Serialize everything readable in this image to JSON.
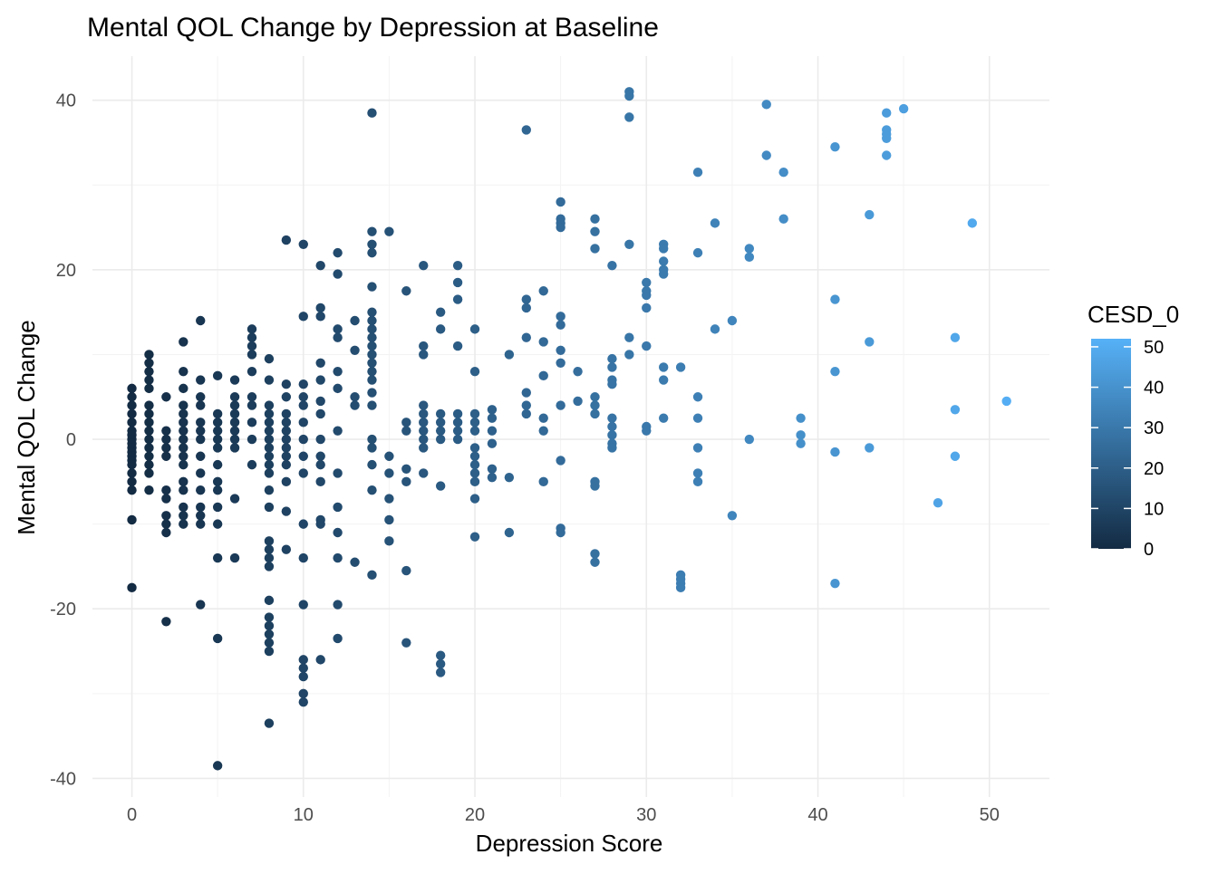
{
  "chart_data": {
    "type": "scatter",
    "title": "Mental QOL Change by Depression at Baseline",
    "xlabel": "Depression Score",
    "ylabel": "Mental QOL Change",
    "xlim": [
      -2.3,
      53.5
    ],
    "ylim": [
      -42.2,
      45.2
    ],
    "x_ticks": [
      0,
      10,
      20,
      30,
      40,
      50
    ],
    "y_ticks": [
      -40,
      -20,
      0,
      20,
      40
    ],
    "x_tick_labels": [
      "0",
      "10",
      "20",
      "30",
      "40",
      "50"
    ],
    "y_tick_labels": [
      "-40",
      "-20",
      "0",
      "20",
      "40"
    ],
    "grid": true,
    "point_color_low": "#132b43",
    "point_color_high": "#56b1f7",
    "legend": {
      "title": "CESD_0",
      "placement": "right",
      "min": 0,
      "max": 52,
      "ticks": [
        0,
        10,
        20,
        30,
        40,
        50
      ],
      "tick_labels": [
        "0",
        "10",
        "20",
        "30",
        "40",
        "50"
      ]
    },
    "points": [
      [
        0,
        6
      ],
      [
        0,
        5
      ],
      [
        0,
        4
      ],
      [
        0,
        3
      ],
      [
        0,
        2
      ],
      [
        0,
        1
      ],
      [
        0,
        0.5
      ],
      [
        0,
        0
      ],
      [
        0,
        -0.5
      ],
      [
        0,
        -1
      ],
      [
        0,
        -1.5
      ],
      [
        0,
        -2
      ],
      [
        0,
        -2.5
      ],
      [
        0,
        -3
      ],
      [
        0,
        -4
      ],
      [
        0,
        -5
      ],
      [
        0,
        -6
      ],
      [
        0,
        -9.5
      ],
      [
        0,
        -17.5
      ],
      [
        1,
        10
      ],
      [
        1,
        9
      ],
      [
        1,
        8
      ],
      [
        1,
        7
      ],
      [
        1,
        6
      ],
      [
        1,
        4
      ],
      [
        1,
        3
      ],
      [
        1,
        2
      ],
      [
        1,
        1
      ],
      [
        1,
        0
      ],
      [
        1,
        -1
      ],
      [
        1,
        -2
      ],
      [
        1,
        -3
      ],
      [
        1,
        -4
      ],
      [
        1,
        -6
      ],
      [
        2,
        5
      ],
      [
        2,
        1
      ],
      [
        2,
        0
      ],
      [
        2,
        -1
      ],
      [
        2,
        -2
      ],
      [
        2,
        -6
      ],
      [
        2,
        -7
      ],
      [
        2,
        -9
      ],
      [
        2,
        -10
      ],
      [
        2,
        -11
      ],
      [
        2,
        -21.5
      ],
      [
        3,
        11.5
      ],
      [
        3,
        8
      ],
      [
        3,
        6
      ],
      [
        3,
        4
      ],
      [
        3,
        3
      ],
      [
        3,
        2
      ],
      [
        3,
        1
      ],
      [
        3,
        0
      ],
      [
        3,
        -1
      ],
      [
        3,
        -2
      ],
      [
        3,
        -3
      ],
      [
        3,
        -5
      ],
      [
        3,
        -6
      ],
      [
        3,
        -8
      ],
      [
        3,
        -9
      ],
      [
        3,
        -10
      ],
      [
        4,
        14
      ],
      [
        4,
        7
      ],
      [
        4,
        5
      ],
      [
        4,
        4
      ],
      [
        4,
        2
      ],
      [
        4,
        1
      ],
      [
        4,
        0
      ],
      [
        4,
        -2
      ],
      [
        4,
        -4
      ],
      [
        4,
        -6
      ],
      [
        4,
        -8
      ],
      [
        4,
        -9
      ],
      [
        4,
        -10
      ],
      [
        4,
        -19.5
      ],
      [
        5,
        7.5
      ],
      [
        5,
        3
      ],
      [
        5,
        2
      ],
      [
        5,
        1
      ],
      [
        5,
        0
      ],
      [
        5,
        -1
      ],
      [
        5,
        -3
      ],
      [
        5,
        -5
      ],
      [
        5,
        -6
      ],
      [
        5,
        -8
      ],
      [
        5,
        -10
      ],
      [
        5,
        -14
      ],
      [
        5,
        -23.5
      ],
      [
        5,
        -38.5
      ],
      [
        6,
        7
      ],
      [
        6,
        5
      ],
      [
        6,
        4
      ],
      [
        6,
        3
      ],
      [
        6,
        2
      ],
      [
        6,
        1
      ],
      [
        6,
        0
      ],
      [
        6,
        -1
      ],
      [
        6,
        -7
      ],
      [
        6,
        -14
      ],
      [
        7,
        13
      ],
      [
        7,
        12
      ],
      [
        7,
        11
      ],
      [
        7,
        10
      ],
      [
        7,
        8
      ],
      [
        7,
        5
      ],
      [
        7,
        4
      ],
      [
        7,
        2
      ],
      [
        7,
        0
      ],
      [
        7,
        -3
      ],
      [
        8,
        9.5
      ],
      [
        8,
        7
      ],
      [
        8,
        4
      ],
      [
        8,
        3
      ],
      [
        8,
        2
      ],
      [
        8,
        1
      ],
      [
        8,
        0
      ],
      [
        8,
        -1
      ],
      [
        8,
        -2
      ],
      [
        8,
        -3
      ],
      [
        8,
        -4
      ],
      [
        8,
        -6
      ],
      [
        8,
        -8
      ],
      [
        8,
        -12
      ],
      [
        8,
        -13
      ],
      [
        8,
        -14
      ],
      [
        8,
        -15
      ],
      [
        8,
        -19
      ],
      [
        8,
        -21
      ],
      [
        8,
        -22
      ],
      [
        8,
        -23
      ],
      [
        8,
        -24
      ],
      [
        8,
        -25
      ],
      [
        8,
        -33.5
      ],
      [
        9,
        23.5
      ],
      [
        9,
        6.5
      ],
      [
        9,
        5
      ],
      [
        9,
        3
      ],
      [
        9,
        2
      ],
      [
        9,
        1
      ],
      [
        9,
        0
      ],
      [
        9,
        -1
      ],
      [
        9,
        -2
      ],
      [
        9,
        -3
      ],
      [
        9,
        -5
      ],
      [
        9,
        -8.5
      ],
      [
        9,
        -13
      ],
      [
        10,
        23
      ],
      [
        10,
        14.5
      ],
      [
        10,
        6.5
      ],
      [
        10,
        5
      ],
      [
        10,
        4
      ],
      [
        10,
        2
      ],
      [
        10,
        0
      ],
      [
        10,
        -2
      ],
      [
        10,
        -4
      ],
      [
        10,
        -10
      ],
      [
        10,
        -14
      ],
      [
        10,
        -19.5
      ],
      [
        10,
        -26
      ],
      [
        10,
        -27
      ],
      [
        10,
        -28
      ],
      [
        10,
        -30
      ],
      [
        10,
        -31
      ],
      [
        11,
        20.5
      ],
      [
        11,
        15.5
      ],
      [
        11,
        14.5
      ],
      [
        11,
        9
      ],
      [
        11,
        7
      ],
      [
        11,
        4.5
      ],
      [
        11,
        3
      ],
      [
        11,
        0
      ],
      [
        11,
        -2
      ],
      [
        11,
        -3
      ],
      [
        11,
        -5
      ],
      [
        11,
        -9.5
      ],
      [
        11,
        -10
      ],
      [
        11,
        -26
      ],
      [
        12,
        22
      ],
      [
        12,
        19.5
      ],
      [
        12,
        13
      ],
      [
        12,
        12
      ],
      [
        12,
        8
      ],
      [
        12,
        6
      ],
      [
        12,
        1
      ],
      [
        12,
        -4
      ],
      [
        12,
        -8
      ],
      [
        12,
        -11
      ],
      [
        12,
        -14
      ],
      [
        12,
        -19.5
      ],
      [
        12,
        -23.5
      ],
      [
        13,
        14
      ],
      [
        13,
        10.5
      ],
      [
        13,
        5
      ],
      [
        13,
        4
      ],
      [
        13,
        -14.5
      ],
      [
        14,
        24.5
      ],
      [
        14,
        23
      ],
      [
        14,
        22
      ],
      [
        14,
        18
      ],
      [
        14,
        15
      ],
      [
        14,
        14
      ],
      [
        14,
        13
      ],
      [
        14,
        12
      ],
      [
        14,
        11
      ],
      [
        14,
        10
      ],
      [
        14,
        9
      ],
      [
        14,
        8
      ],
      [
        14,
        7
      ],
      [
        14,
        5.5
      ],
      [
        14,
        4
      ],
      [
        14,
        0
      ],
      [
        14,
        -1
      ],
      [
        14,
        -3
      ],
      [
        14,
        -6
      ],
      [
        14,
        -16
      ],
      [
        14,
        38.5
      ],
      [
        15,
        24.5
      ],
      [
        15,
        -2
      ],
      [
        15,
        -4
      ],
      [
        15,
        -7
      ],
      [
        15,
        -9.5
      ],
      [
        15,
        -12
      ],
      [
        16,
        17.5
      ],
      [
        16,
        2
      ],
      [
        16,
        1
      ],
      [
        16,
        -3.5
      ],
      [
        16,
        -5
      ],
      [
        16,
        -15.5
      ],
      [
        16,
        -24
      ],
      [
        17,
        20.5
      ],
      [
        17,
        11
      ],
      [
        17,
        10
      ],
      [
        17,
        4
      ],
      [
        17,
        3
      ],
      [
        17,
        2
      ],
      [
        17,
        1
      ],
      [
        17,
        0
      ],
      [
        17,
        -1
      ],
      [
        17,
        -4
      ],
      [
        18,
        15
      ],
      [
        18,
        13
      ],
      [
        18,
        3
      ],
      [
        18,
        2
      ],
      [
        18,
        1
      ],
      [
        18,
        0
      ],
      [
        18,
        -5.5
      ],
      [
        18,
        -25.5
      ],
      [
        18,
        -26.5
      ],
      [
        18,
        -27.5
      ],
      [
        19,
        20.5
      ],
      [
        19,
        18.5
      ],
      [
        19,
        16.5
      ],
      [
        19,
        11
      ],
      [
        19,
        3
      ],
      [
        19,
        2
      ],
      [
        19,
        1
      ],
      [
        19,
        0
      ],
      [
        20,
        13
      ],
      [
        20,
        8
      ],
      [
        20,
        3
      ],
      [
        20,
        2
      ],
      [
        20,
        1
      ],
      [
        20,
        -1
      ],
      [
        20,
        -2
      ],
      [
        20,
        -3
      ],
      [
        20,
        -4
      ],
      [
        20,
        -5
      ],
      [
        20,
        -7
      ],
      [
        20,
        -11.5
      ],
      [
        21,
        3.5
      ],
      [
        21,
        2.5
      ],
      [
        21,
        1
      ],
      [
        21,
        -0.5
      ],
      [
        21,
        -3.5
      ],
      [
        21,
        -4.5
      ],
      [
        22,
        10
      ],
      [
        22,
        -4.5
      ],
      [
        22,
        -11
      ],
      [
        23,
        36.5
      ],
      [
        23,
        16.5
      ],
      [
        23,
        15.5
      ],
      [
        23,
        12
      ],
      [
        23,
        5.5
      ],
      [
        23,
        4
      ],
      [
        23,
        3
      ],
      [
        24,
        17.5
      ],
      [
        24,
        11.5
      ],
      [
        24,
        7.5
      ],
      [
        24,
        2.5
      ],
      [
        24,
        1
      ],
      [
        24,
        -5
      ],
      [
        25,
        28
      ],
      [
        25,
        26
      ],
      [
        25,
        25.5
      ],
      [
        25,
        25
      ],
      [
        25,
        14.5
      ],
      [
        25,
        13.5
      ],
      [
        25,
        10.5
      ],
      [
        25,
        9
      ],
      [
        25,
        4
      ],
      [
        25,
        -2.5
      ],
      [
        25,
        -10.5
      ],
      [
        25,
        -11
      ],
      [
        26,
        8
      ],
      [
        26,
        4.5
      ],
      [
        27,
        26
      ],
      [
        27,
        24.5
      ],
      [
        27,
        22.5
      ],
      [
        27,
        5
      ],
      [
        27,
        4
      ],
      [
        27,
        3
      ],
      [
        27,
        -5
      ],
      [
        27,
        -5.5
      ],
      [
        27,
        -13.5
      ],
      [
        27,
        -14.5
      ],
      [
        28,
        20.5
      ],
      [
        28,
        9.5
      ],
      [
        28,
        8.5
      ],
      [
        28,
        7
      ],
      [
        28,
        6.5
      ],
      [
        28,
        2.5
      ],
      [
        28,
        1.5
      ],
      [
        28,
        0.5
      ],
      [
        28,
        -0.5
      ],
      [
        28,
        -1
      ],
      [
        29,
        41
      ],
      [
        29,
        40.5
      ],
      [
        29,
        38
      ],
      [
        29,
        23
      ],
      [
        29,
        12
      ],
      [
        29,
        10
      ],
      [
        30,
        18.5
      ],
      [
        30,
        17.5
      ],
      [
        30,
        17
      ],
      [
        30,
        15.5
      ],
      [
        30,
        11
      ],
      [
        30,
        1.5
      ],
      [
        30,
        1
      ],
      [
        31,
        23
      ],
      [
        31,
        22.5
      ],
      [
        31,
        21
      ],
      [
        31,
        20
      ],
      [
        31,
        19.5
      ],
      [
        31,
        8.5
      ],
      [
        31,
        7
      ],
      [
        31,
        2.5
      ],
      [
        32,
        8.5
      ],
      [
        32,
        -16
      ],
      [
        32,
        -16.5
      ],
      [
        32,
        -17
      ],
      [
        32,
        -17.5
      ],
      [
        33,
        31.5
      ],
      [
        33,
        22
      ],
      [
        33,
        5
      ],
      [
        33,
        2.5
      ],
      [
        33,
        -1
      ],
      [
        33,
        -4
      ],
      [
        33,
        -5
      ],
      [
        34,
        25.5
      ],
      [
        34,
        13
      ],
      [
        35,
        14
      ],
      [
        35,
        -9
      ],
      [
        36,
        22.5
      ],
      [
        36,
        21.5
      ],
      [
        36,
        0
      ],
      [
        37,
        39.5
      ],
      [
        37,
        33.5
      ],
      [
        38,
        31.5
      ],
      [
        38,
        26
      ],
      [
        39,
        2.5
      ],
      [
        39,
        0.5
      ],
      [
        39,
        -0.5
      ],
      [
        41,
        34.5
      ],
      [
        41,
        16.5
      ],
      [
        41,
        8
      ],
      [
        41,
        -1.5
      ],
      [
        41,
        -17
      ],
      [
        43,
        26.5
      ],
      [
        43,
        11.5
      ],
      [
        43,
        -1
      ],
      [
        44,
        38.5
      ],
      [
        44,
        36.5
      ],
      [
        44,
        36
      ],
      [
        44,
        35.5
      ],
      [
        44,
        33.5
      ],
      [
        45,
        39
      ],
      [
        47,
        -7.5
      ],
      [
        48,
        12
      ],
      [
        48,
        3.5
      ],
      [
        48,
        -2
      ],
      [
        49,
        25.5
      ],
      [
        51,
        4.5
      ]
    ]
  }
}
